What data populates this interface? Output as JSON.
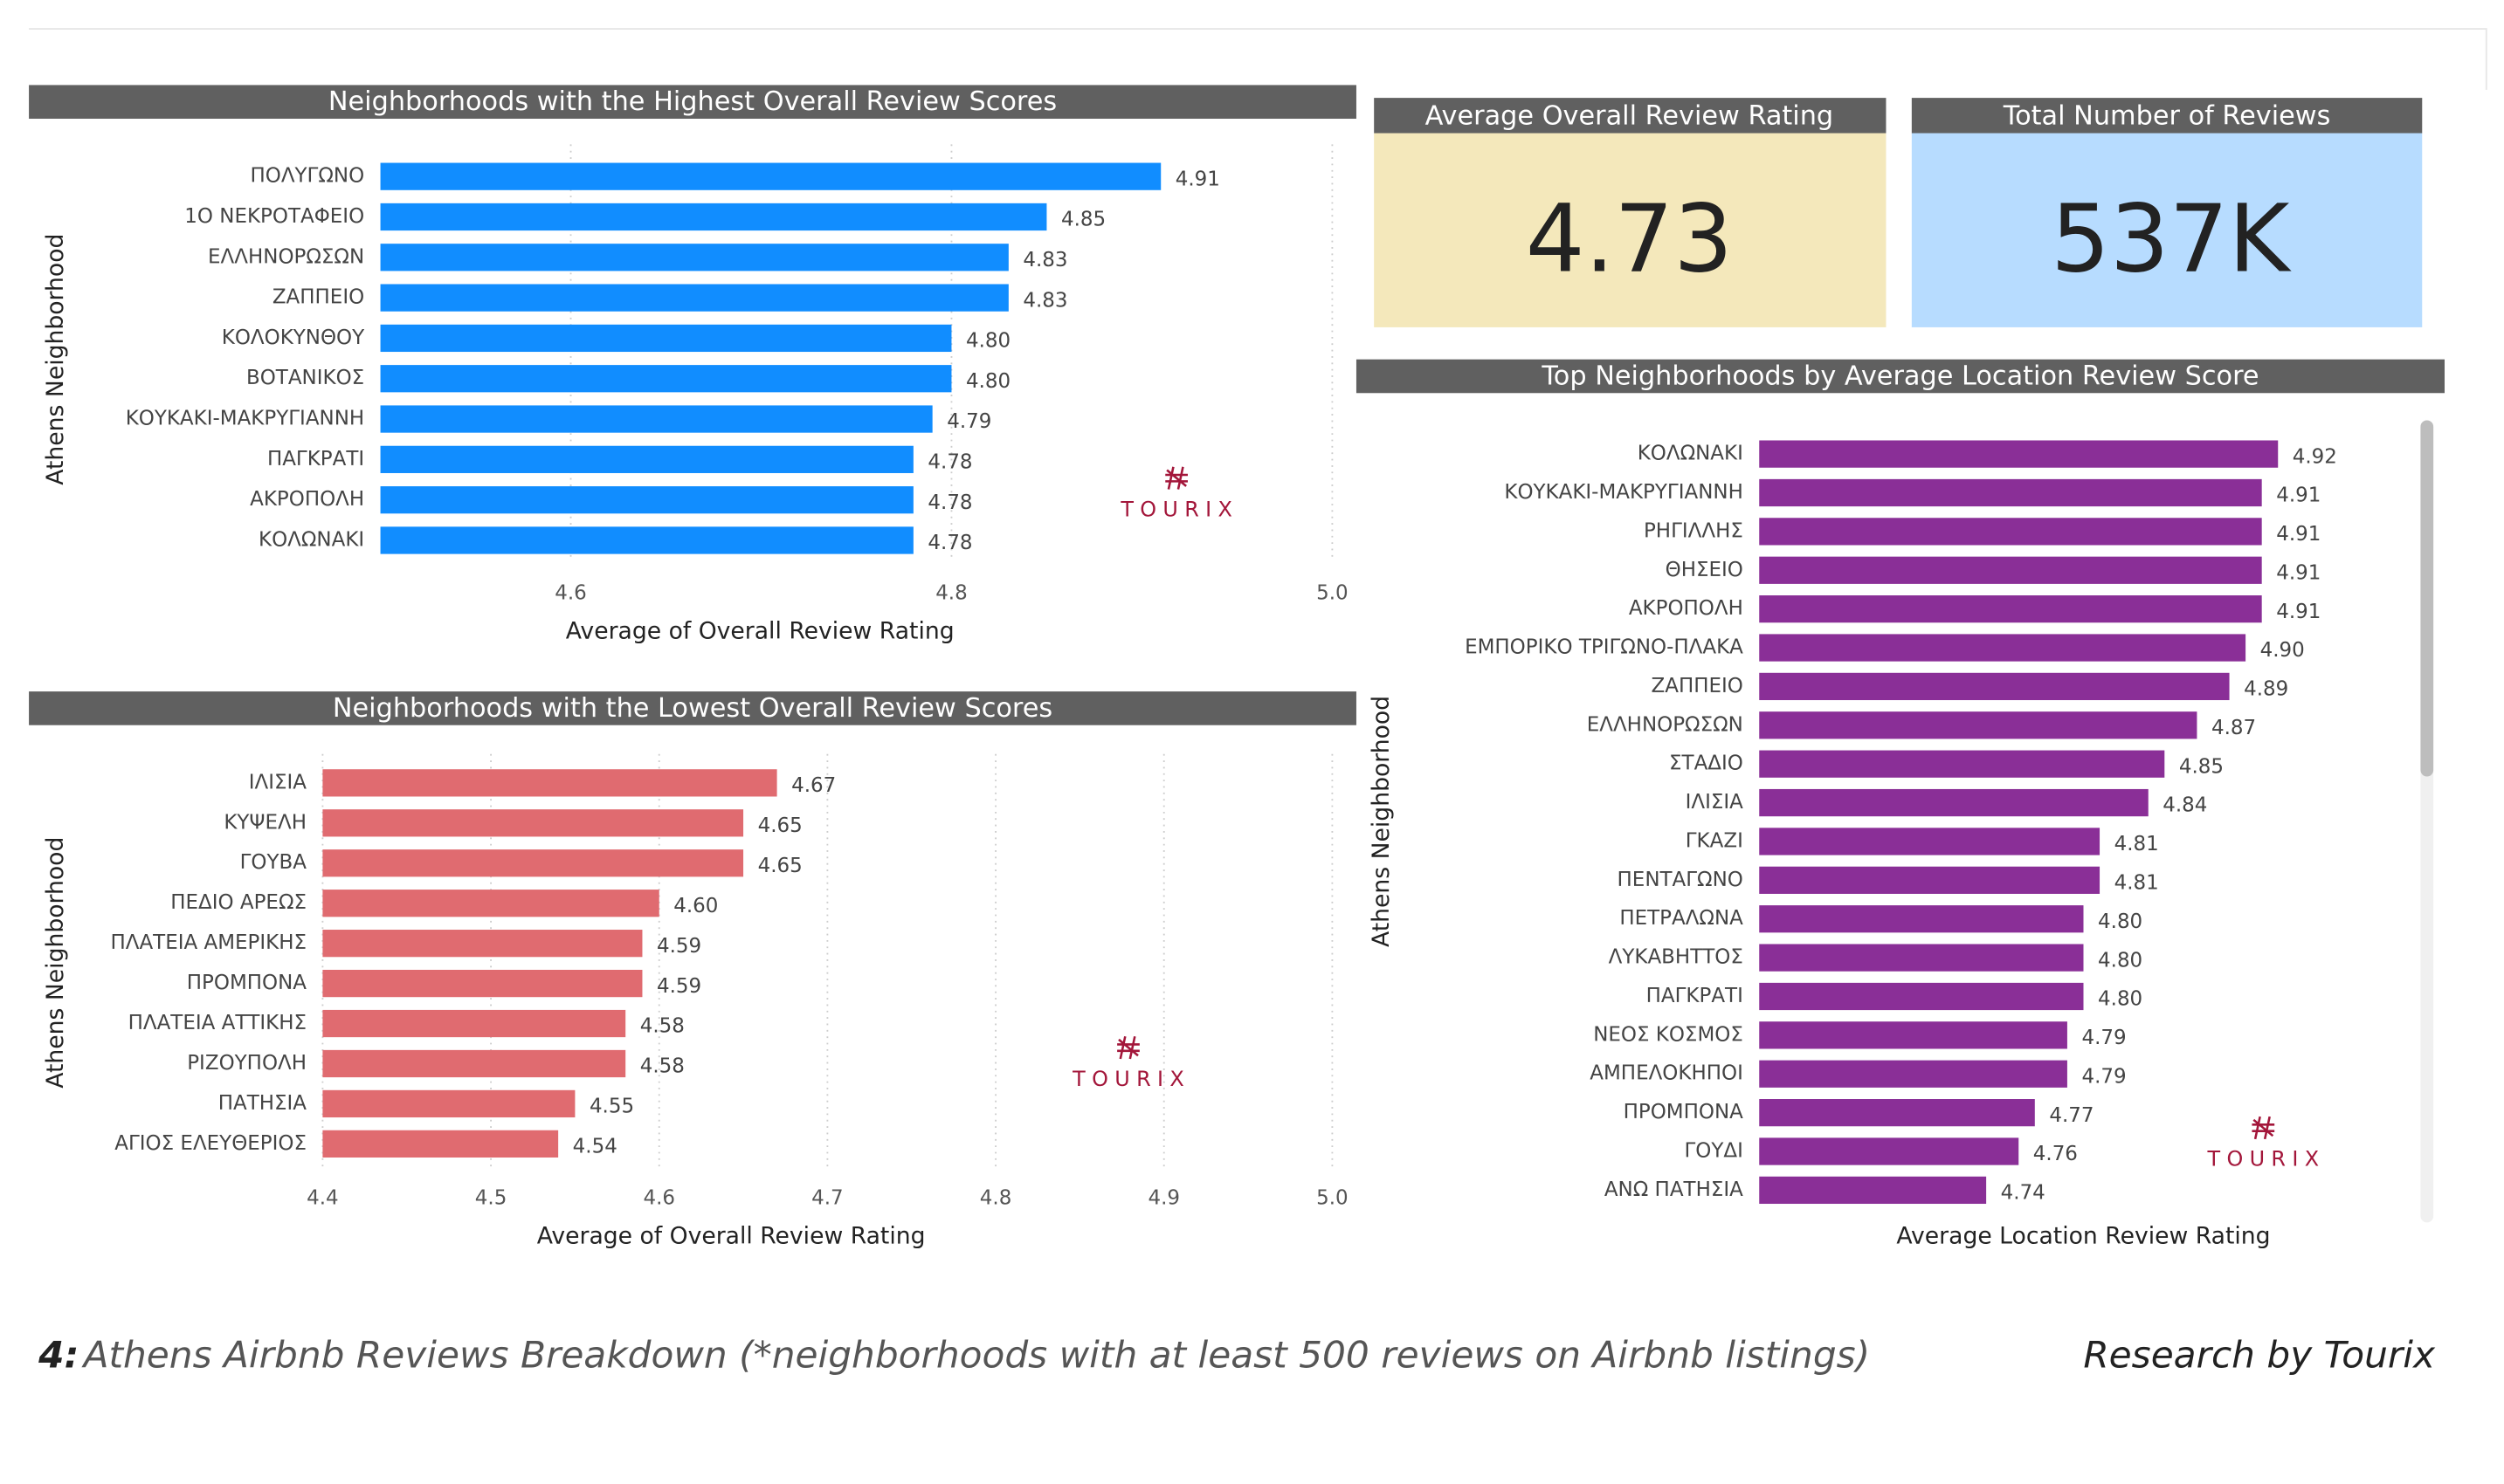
{
  "chart_data": [
    {
      "type": "hbar",
      "title": "Neighborhoods with the Highest Overall Review Scores",
      "x_label": "Average of Overall Review Rating",
      "y_label": "Athens Neighborhood",
      "categories": [
        "ΠΟΛΥΓΩΝΟ",
        "1Ο ΝΕΚΡΟΤΑΦΕΙΟ",
        "ΕΛΛΗΝΟΡΩΣΩΝ",
        "ΖΑΠΠΕΙΟ",
        "ΚΟΛΟΚΥΝΘΟΥ",
        "ΒΟΤΑΝΙΚΟΣ",
        "ΚΟΥΚΑΚΙ-ΜΑΚΡΥΓΙΑΝΝΗ",
        "ΠΑΓΚΡΑΤΙ",
        "ΑΚΡΟΠΟΛΗ",
        "ΚΟΛΩΝΑΚΙ"
      ],
      "values": [
        4.91,
        4.85,
        4.83,
        4.83,
        4.8,
        4.8,
        4.79,
        4.78,
        4.78,
        4.78
      ],
      "value_labels": [
        "4.91",
        "4.85",
        "4.83",
        "4.83",
        "4.80",
        "4.80",
        "4.79",
        "4.78",
        "4.78",
        "4.78"
      ],
      "color": "#118dff",
      "xlim": [
        4.5,
        5.0
      ],
      "xticks": [
        4.6,
        4.8,
        {
          "value": 5.0,
          "label": "5.0"
        }
      ],
      "grid": true,
      "logo": "TOURIX"
    },
    {
      "type": "hbar",
      "title": "Neighborhoods with the Lowest Overall Review Scores",
      "x_label": "Average of Overall Review Rating",
      "y_label": "Athens Neighborhood",
      "categories": [
        "ΙΛΙΣΙΑ",
        "ΚΥΨΕΛΗ",
        "ΓΟΥΒΑ",
        "ΠΕΔΙΟ ΑΡΕΩΣ",
        "ΠΛΑΤΕΙΑ ΑΜΕΡΙΚΗΣ",
        "ΠΡΟΜΠΟΝΑ",
        "ΠΛΑΤΕΙΑ ΑΤΤΙΚΗΣ",
        "ΡΙΖΟΥΠΟΛΗ",
        "ΠΑΤΗΣΙΑ",
        "ΑΓΙΟΣ ΕΛΕΥΘΕΡΙΟΣ"
      ],
      "values": [
        4.67,
        4.65,
        4.65,
        4.6,
        4.59,
        4.59,
        4.58,
        4.58,
        4.55,
        4.54
      ],
      "value_labels": [
        "4.67",
        "4.65",
        "4.65",
        "4.60",
        "4.59",
        "4.59",
        "4.58",
        "4.58",
        "4.55",
        "4.54"
      ],
      "color": "#e06b70",
      "xlim": [
        4.4,
        5.0
      ],
      "xticks": [
        4.4,
        4.5,
        4.6,
        4.7,
        4.8,
        4.9,
        {
          "value": 5.0,
          "label": "5.0"
        }
      ],
      "grid": true,
      "logo": "TOURIX"
    },
    {
      "type": "hbar",
      "title": "Top Neighborhoods by Average Location Review Score",
      "x_label": "Average Location Review Rating",
      "y_label": "Athens Neighborhood",
      "categories": [
        "ΚΟΛΩΝΑΚΙ",
        "ΚΟΥΚΑΚΙ-ΜΑΚΡΥΓΙΑΝΝΗ",
        "ΡΗΓΙΛΛΗΣ",
        "ΘΗΣΕΙΟ",
        "ΑΚΡΟΠΟΛΗ",
        "ΕΜΠΟΡΙΚΟ ΤΡΙΓΩΝΟ-ΠΛΑΚΑ",
        "ΖΑΠΠΕΙΟ",
        "ΕΛΛΗΝΟΡΩΣΩΝ",
        "ΣΤΑΔΙΟ",
        "ΙΛΙΣΙΑ",
        "ΓΚΑΖΙ",
        "ΠΕΝΤΑΓΩΝΟ",
        "ΠΕΤΡΑΛΩΝΑ",
        "ΛΥΚΑΒΗΤΤΟΣ",
        "ΠΑΓΚΡΑΤΙ",
        "ΝΕΟΣ ΚΟΣΜΟΣ",
        "ΑΜΠΕΛΟΚΗΠΟΙ",
        "ΠΡΟΜΠΟΝΑ",
        "ΓΟΥΔΙ",
        "ΑΝΩ ΠΑΤΗΣΙΑ"
      ],
      "values": [
        4.92,
        4.91,
        4.91,
        4.91,
        4.91,
        4.9,
        4.89,
        4.87,
        4.85,
        4.84,
        4.81,
        4.81,
        4.8,
        4.8,
        4.8,
        4.79,
        4.79,
        4.77,
        4.76,
        4.74
      ],
      "value_labels": [
        "4.92",
        "4.91",
        "4.91",
        "4.91",
        "4.91",
        "4.90",
        "4.89",
        "4.87",
        "4.85",
        "4.84",
        "4.81",
        "4.81",
        "4.80",
        "4.80",
        "4.80",
        "4.79",
        "4.79",
        "4.77",
        "4.76",
        "4.74"
      ],
      "color": "#8a2f97",
      "xlim": [
        4.6,
        5.0
      ],
      "grid": false,
      "logo": "TOURIX"
    }
  ],
  "cards": [
    {
      "title": "Average Overall Review Rating",
      "value": "4.73"
    },
    {
      "title": "Total Number of Reviews",
      "value": "537K"
    }
  ],
  "caption": {
    "number": "4:",
    "text": "Athens Airbnb Reviews Breakdown (*neighborhoods with at least 500 reviews on Airbnb listings)",
    "credit": "Research by Tourix"
  }
}
